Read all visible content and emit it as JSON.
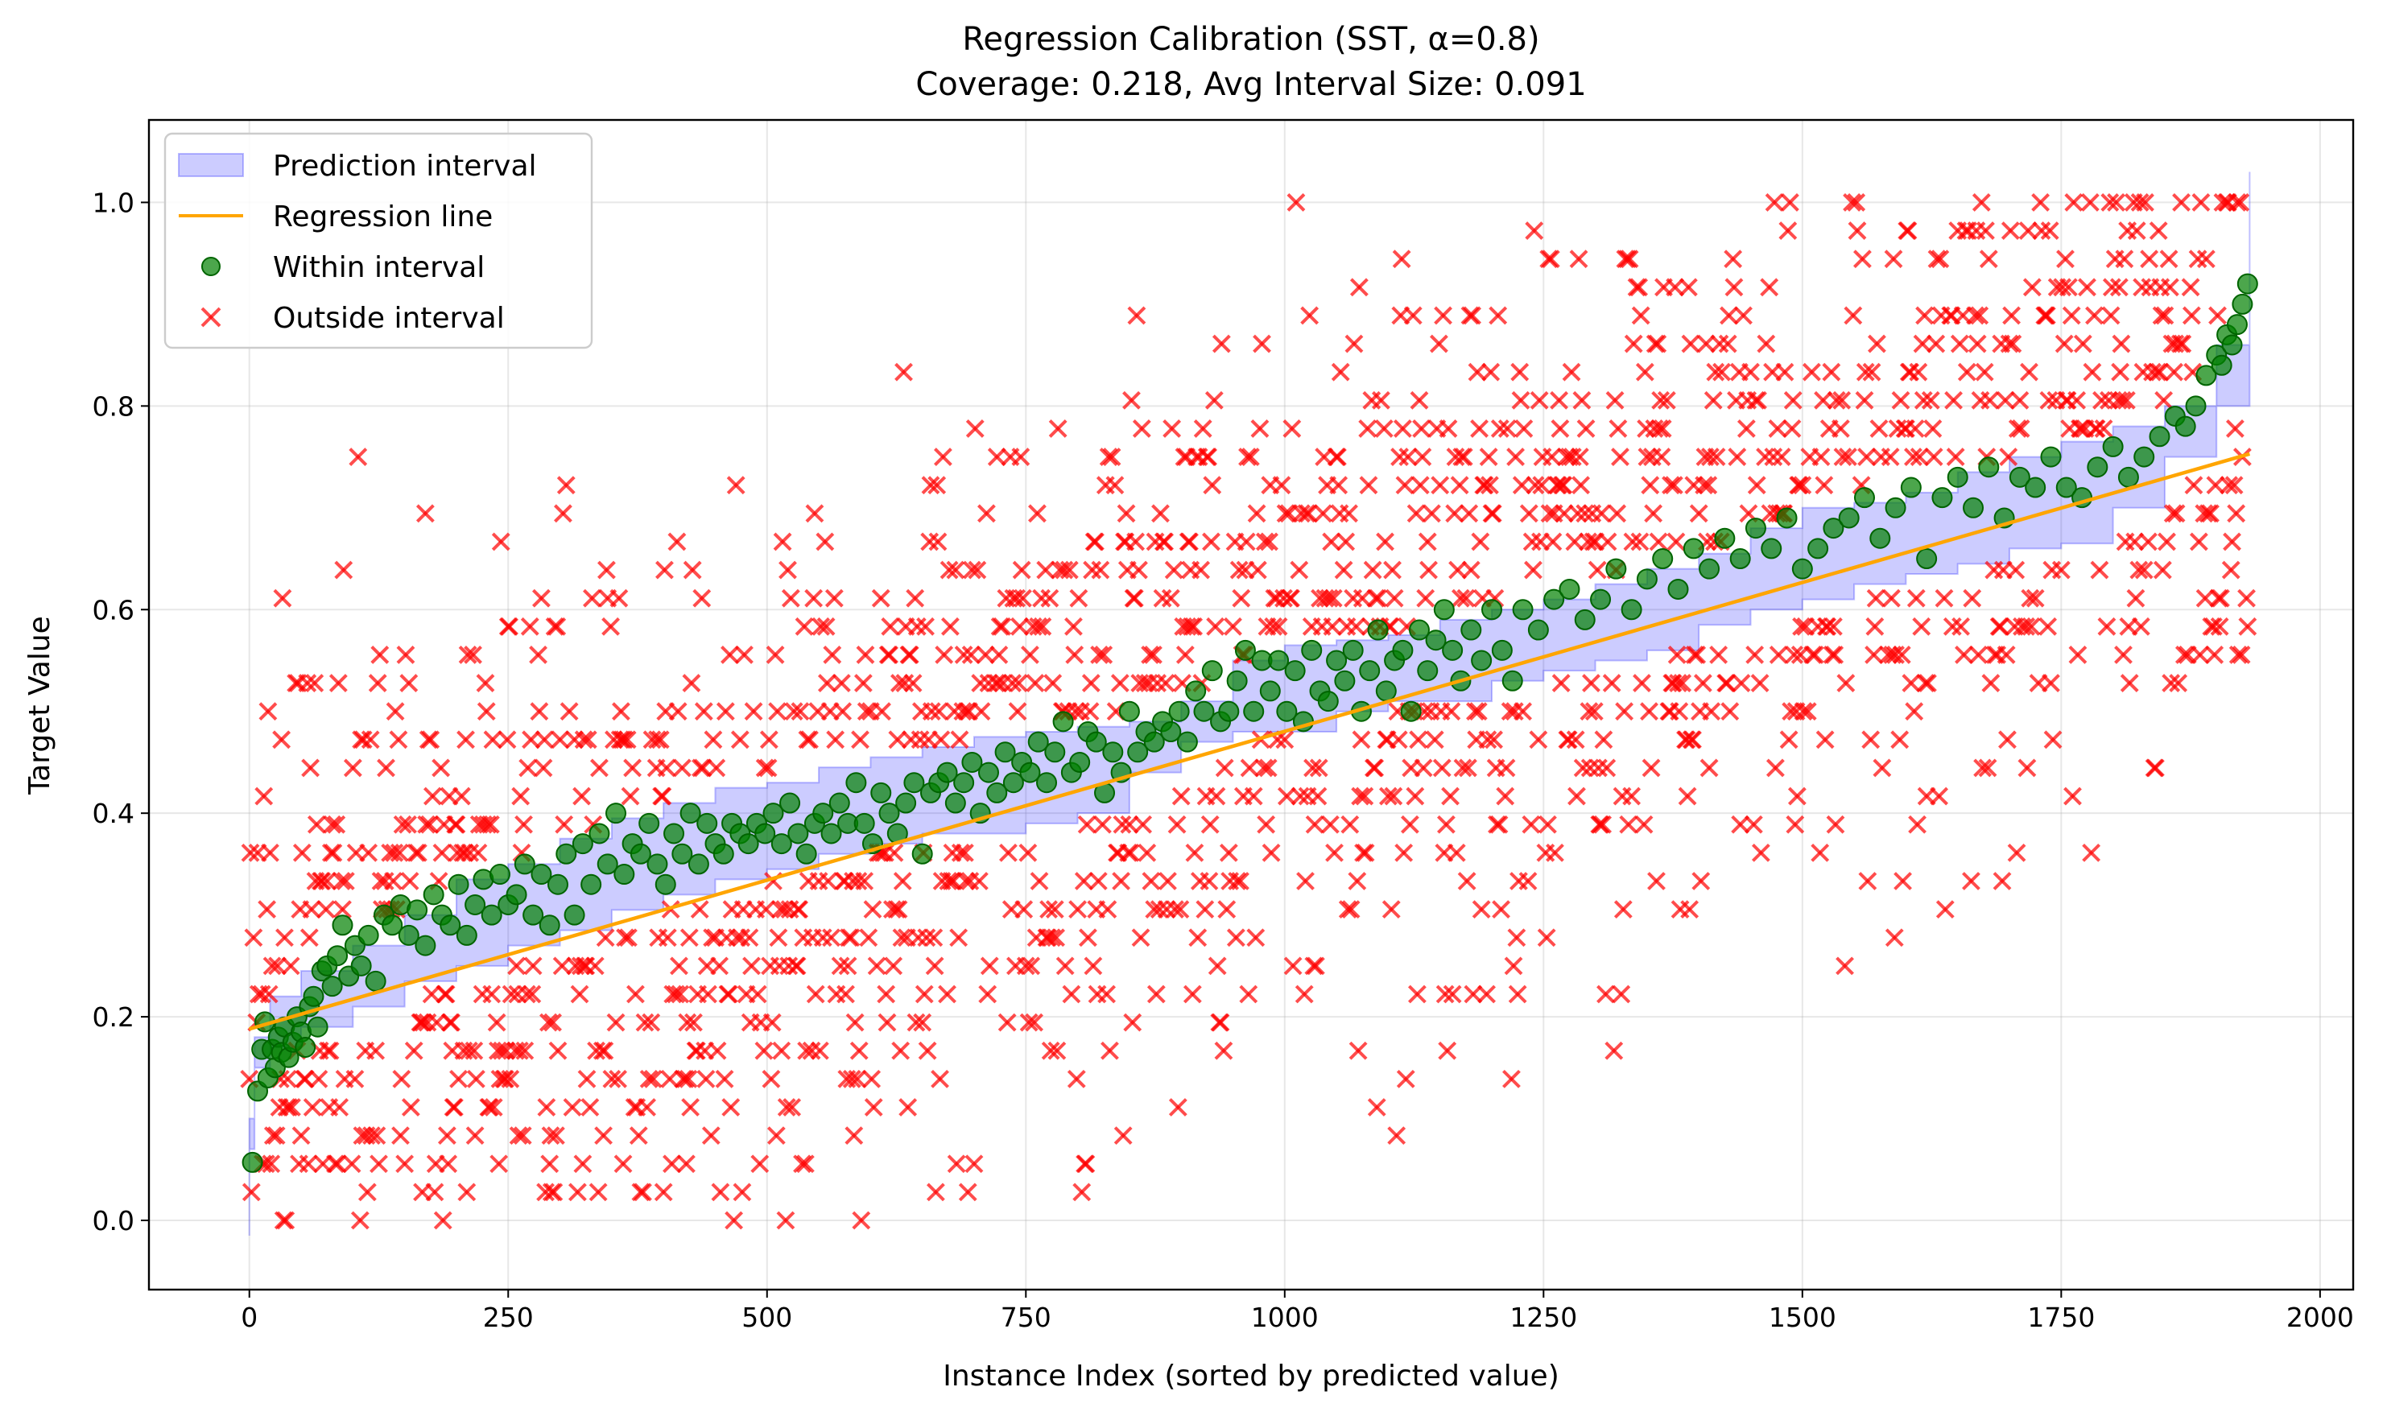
{
  "chart_data": {
    "type": "scatter",
    "title": "Regression Calibration (SST, α=0.8)",
    "subtitle": "Coverage: 0.218, Avg Interval Size: 0.091",
    "xlabel": "Instance Index (sorted by predicted value)",
    "ylabel": "Target Value",
    "xlim": [
      -97,
      2032
    ],
    "ylim": [
      -0.068,
      1.081
    ],
    "x_ticks": [
      0,
      250,
      500,
      750,
      1000,
      1250,
      1500,
      1750,
      2000
    ],
    "x_tick_labels": [
      "0",
      "250",
      "500",
      "750",
      "1000",
      "1250",
      "1500",
      "1750",
      "2000"
    ],
    "y_ticks": [
      0.0,
      0.2,
      0.4,
      0.6,
      0.8,
      1.0
    ],
    "y_tick_labels": [
      "0.0",
      "0.2",
      "0.4",
      "0.6",
      "0.8",
      "1.0"
    ],
    "grid": true,
    "legend_position": "top-left",
    "n_instances": 1932,
    "series": [
      {
        "name": "Prediction interval",
        "kind": "band",
        "color": "#0000ff",
        "x": [
          0,
          5,
          20,
          50,
          100,
          150,
          200,
          250,
          300,
          350,
          400,
          450,
          500,
          550,
          600,
          650,
          700,
          750,
          800,
          850,
          900,
          950,
          1000,
          1050,
          1100,
          1150,
          1200,
          1250,
          1300,
          1350,
          1400,
          1450,
          1500,
          1550,
          1600,
          1650,
          1700,
          1750,
          1800,
          1850,
          1900,
          1932
        ],
        "lower": [
          -0.015,
          0.1,
          0.15,
          0.17,
          0.19,
          0.21,
          0.235,
          0.25,
          0.27,
          0.285,
          0.305,
          0.32,
          0.335,
          0.345,
          0.36,
          0.37,
          0.38,
          0.38,
          0.39,
          0.4,
          0.44,
          0.47,
          0.48,
          0.48,
          0.5,
          0.51,
          0.51,
          0.53,
          0.54,
          0.55,
          0.56,
          0.585,
          0.6,
          0.61,
          0.625,
          0.635,
          0.645,
          0.66,
          0.665,
          0.7,
          0.75,
          0.8
        ],
        "upper": [
          0.07,
          0.18,
          0.22,
          0.245,
          0.27,
          0.3,
          0.335,
          0.35,
          0.375,
          0.395,
          0.41,
          0.425,
          0.43,
          0.445,
          0.455,
          0.465,
          0.475,
          0.48,
          0.485,
          0.49,
          0.51,
          0.55,
          0.565,
          0.57,
          0.575,
          0.59,
          0.6,
          0.61,
          0.625,
          0.64,
          0.655,
          0.68,
          0.7,
          0.705,
          0.715,
          0.735,
          0.75,
          0.765,
          0.78,
          0.8,
          0.86,
          1.03
        ]
      },
      {
        "name": "Regression line",
        "kind": "line",
        "color": "#ffa500",
        "x": [
          0,
          1932
        ],
        "y": [
          0.188,
          0.753
        ]
      },
      {
        "name": "Within interval",
        "kind": "points",
        "marker": "circle",
        "color": "#008000",
        "x": [
          3,
          8,
          12,
          15,
          18,
          22,
          25,
          28,
          31,
          34,
          38,
          42,
          46,
          50,
          54,
          58,
          62,
          66,
          70,
          75,
          80,
          85,
          90,
          96,
          102,
          108,
          115,
          122,
          130,
          138,
          146,
          154,
          162,
          170,
          178,
          186,
          194,
          202,
          210,
          218,
          226,
          234,
          242,
          250,
          258,
          266,
          274,
          282,
          290,
          298,
          306,
          314,
          322,
          330,
          338,
          346,
          354,
          362,
          370,
          378,
          386,
          394,
          402,
          410,
          418,
          426,
          434,
          442,
          450,
          458,
          466,
          474,
          482,
          490,
          498,
          506,
          514,
          522,
          530,
          538,
          546,
          554,
          562,
          570,
          578,
          586,
          594,
          602,
          610,
          618,
          626,
          634,
          642,
          650,
          658,
          666,
          674,
          682,
          690,
          698,
          706,
          714,
          722,
          730,
          738,
          746,
          754,
          762,
          770,
          778,
          786,
          794,
          802,
          810,
          818,
          826,
          834,
          842,
          850,
          858,
          866,
          874,
          882,
          890,
          898,
          906,
          914,
          922,
          930,
          938,
          946,
          954,
          962,
          970,
          978,
          986,
          994,
          1002,
          1010,
          1018,
          1026,
          1034,
          1042,
          1050,
          1058,
          1066,
          1074,
          1082,
          1090,
          1098,
          1106,
          1114,
          1122,
          1130,
          1138,
          1146,
          1154,
          1162,
          1170,
          1180,
          1190,
          1200,
          1210,
          1220,
          1230,
          1245,
          1260,
          1275,
          1290,
          1305,
          1320,
          1335,
          1350,
          1365,
          1380,
          1395,
          1410,
          1425,
          1440,
          1455,
          1470,
          1485,
          1500,
          1515,
          1530,
          1545,
          1560,
          1575,
          1590,
          1605,
          1620,
          1635,
          1650,
          1665,
          1680,
          1695,
          1710,
          1725,
          1740,
          1755,
          1770,
          1785,
          1800,
          1815,
          1830,
          1845,
          1860,
          1870,
          1880,
          1890,
          1900,
          1905,
          1910,
          1915,
          1920,
          1925,
          1930
        ],
        "y": [
          0.057,
          0.127,
          0.168,
          0.195,
          0.14,
          0.168,
          0.15,
          0.18,
          0.165,
          0.19,
          0.16,
          0.175,
          0.2,
          0.185,
          0.17,
          0.21,
          0.22,
          0.19,
          0.245,
          0.25,
          0.23,
          0.26,
          0.29,
          0.24,
          0.27,
          0.25,
          0.28,
          0.235,
          0.3,
          0.29,
          0.31,
          0.28,
          0.305,
          0.27,
          0.32,
          0.3,
          0.29,
          0.33,
          0.28,
          0.31,
          0.335,
          0.3,
          0.34,
          0.31,
          0.32,
          0.35,
          0.3,
          0.34,
          0.29,
          0.33,
          0.36,
          0.3,
          0.37,
          0.33,
          0.38,
          0.35,
          0.4,
          0.34,
          0.37,
          0.36,
          0.39,
          0.35,
          0.33,
          0.38,
          0.36,
          0.4,
          0.35,
          0.39,
          0.37,
          0.36,
          0.39,
          0.38,
          0.37,
          0.39,
          0.38,
          0.4,
          0.37,
          0.41,
          0.38,
          0.36,
          0.39,
          0.4,
          0.38,
          0.41,
          0.39,
          0.43,
          0.39,
          0.37,
          0.42,
          0.4,
          0.38,
          0.41,
          0.43,
          0.36,
          0.42,
          0.43,
          0.44,
          0.41,
          0.43,
          0.45,
          0.4,
          0.44,
          0.42,
          0.46,
          0.43,
          0.45,
          0.44,
          0.47,
          0.43,
          0.46,
          0.49,
          0.44,
          0.45,
          0.48,
          0.47,
          0.42,
          0.46,
          0.44,
          0.5,
          0.46,
          0.48,
          0.47,
          0.49,
          0.48,
          0.5,
          0.47,
          0.52,
          0.5,
          0.54,
          0.49,
          0.5,
          0.53,
          0.56,
          0.5,
          0.55,
          0.52,
          0.55,
          0.5,
          0.54,
          0.49,
          0.56,
          0.52,
          0.51,
          0.55,
          0.53,
          0.56,
          0.5,
          0.54,
          0.58,
          0.52,
          0.55,
          0.56,
          0.5,
          0.58,
          0.54,
          0.57,
          0.6,
          0.56,
          0.53,
          0.58,
          0.55,
          0.6,
          0.56,
          0.53,
          0.6,
          0.58,
          0.61,
          0.62,
          0.59,
          0.61,
          0.64,
          0.6,
          0.63,
          0.65,
          0.62,
          0.66,
          0.64,
          0.67,
          0.65,
          0.68,
          0.66,
          0.69,
          0.64,
          0.66,
          0.68,
          0.69,
          0.71,
          0.67,
          0.7,
          0.72,
          0.65,
          0.71,
          0.73,
          0.7,
          0.74,
          0.69,
          0.73,
          0.72,
          0.75,
          0.72,
          0.71,
          0.74,
          0.76,
          0.73,
          0.75,
          0.77,
          0.79,
          0.78,
          0.8,
          0.83,
          0.85,
          0.84,
          0.87,
          0.86,
          0.88,
          0.9,
          0.92
        ]
      },
      {
        "name": "Outside interval",
        "kind": "points",
        "marker": "x",
        "color": "#ff0000"
      }
    ]
  },
  "colors": {
    "band_fill": "#0000ff",
    "line": "#ffa500",
    "within": "#008000",
    "outside": "#ff0000",
    "grid": "#b0b0b0"
  }
}
